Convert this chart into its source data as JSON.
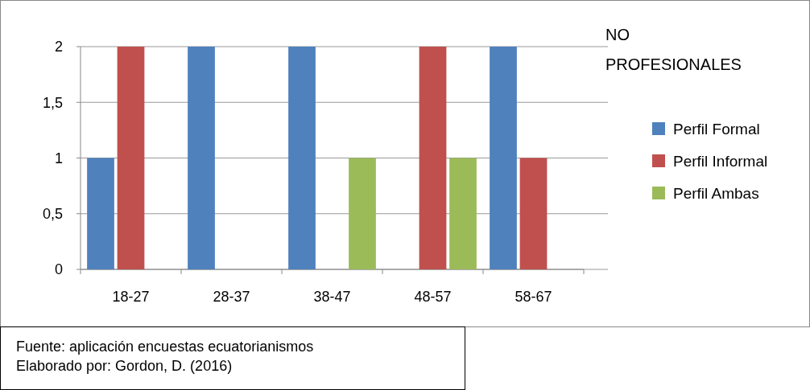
{
  "chart_data": {
    "type": "bar",
    "title": "NO PROFESIONALES",
    "categories": [
      "18-27",
      "28-37",
      "38-47",
      "48-57",
      "58-67"
    ],
    "series": [
      {
        "name": "Perfil Formal",
        "color": "#4f81bd",
        "values": [
          1,
          2,
          2,
          0,
          2
        ]
      },
      {
        "name": "Perfil Informal",
        "color": "#c0504d",
        "values": [
          2,
          0,
          0,
          2,
          1
        ]
      },
      {
        "name": "Perfil Ambas",
        "color": "#9bbb59",
        "values": [
          0,
          0,
          1,
          1,
          0
        ]
      }
    ],
    "ylim": [
      0,
      2
    ],
    "yticks": [
      0,
      {
        "value": 0.5,
        "label": "0,5"
      },
      1,
      {
        "value": 1.5,
        "label": "1,5"
      },
      2
    ],
    "grid": "y",
    "legend": "right",
    "annotations": [
      "Fuente: aplicación encuestas ecuatorianismos",
      "Elaborado por: Gordon, D. (2016)"
    ]
  }
}
